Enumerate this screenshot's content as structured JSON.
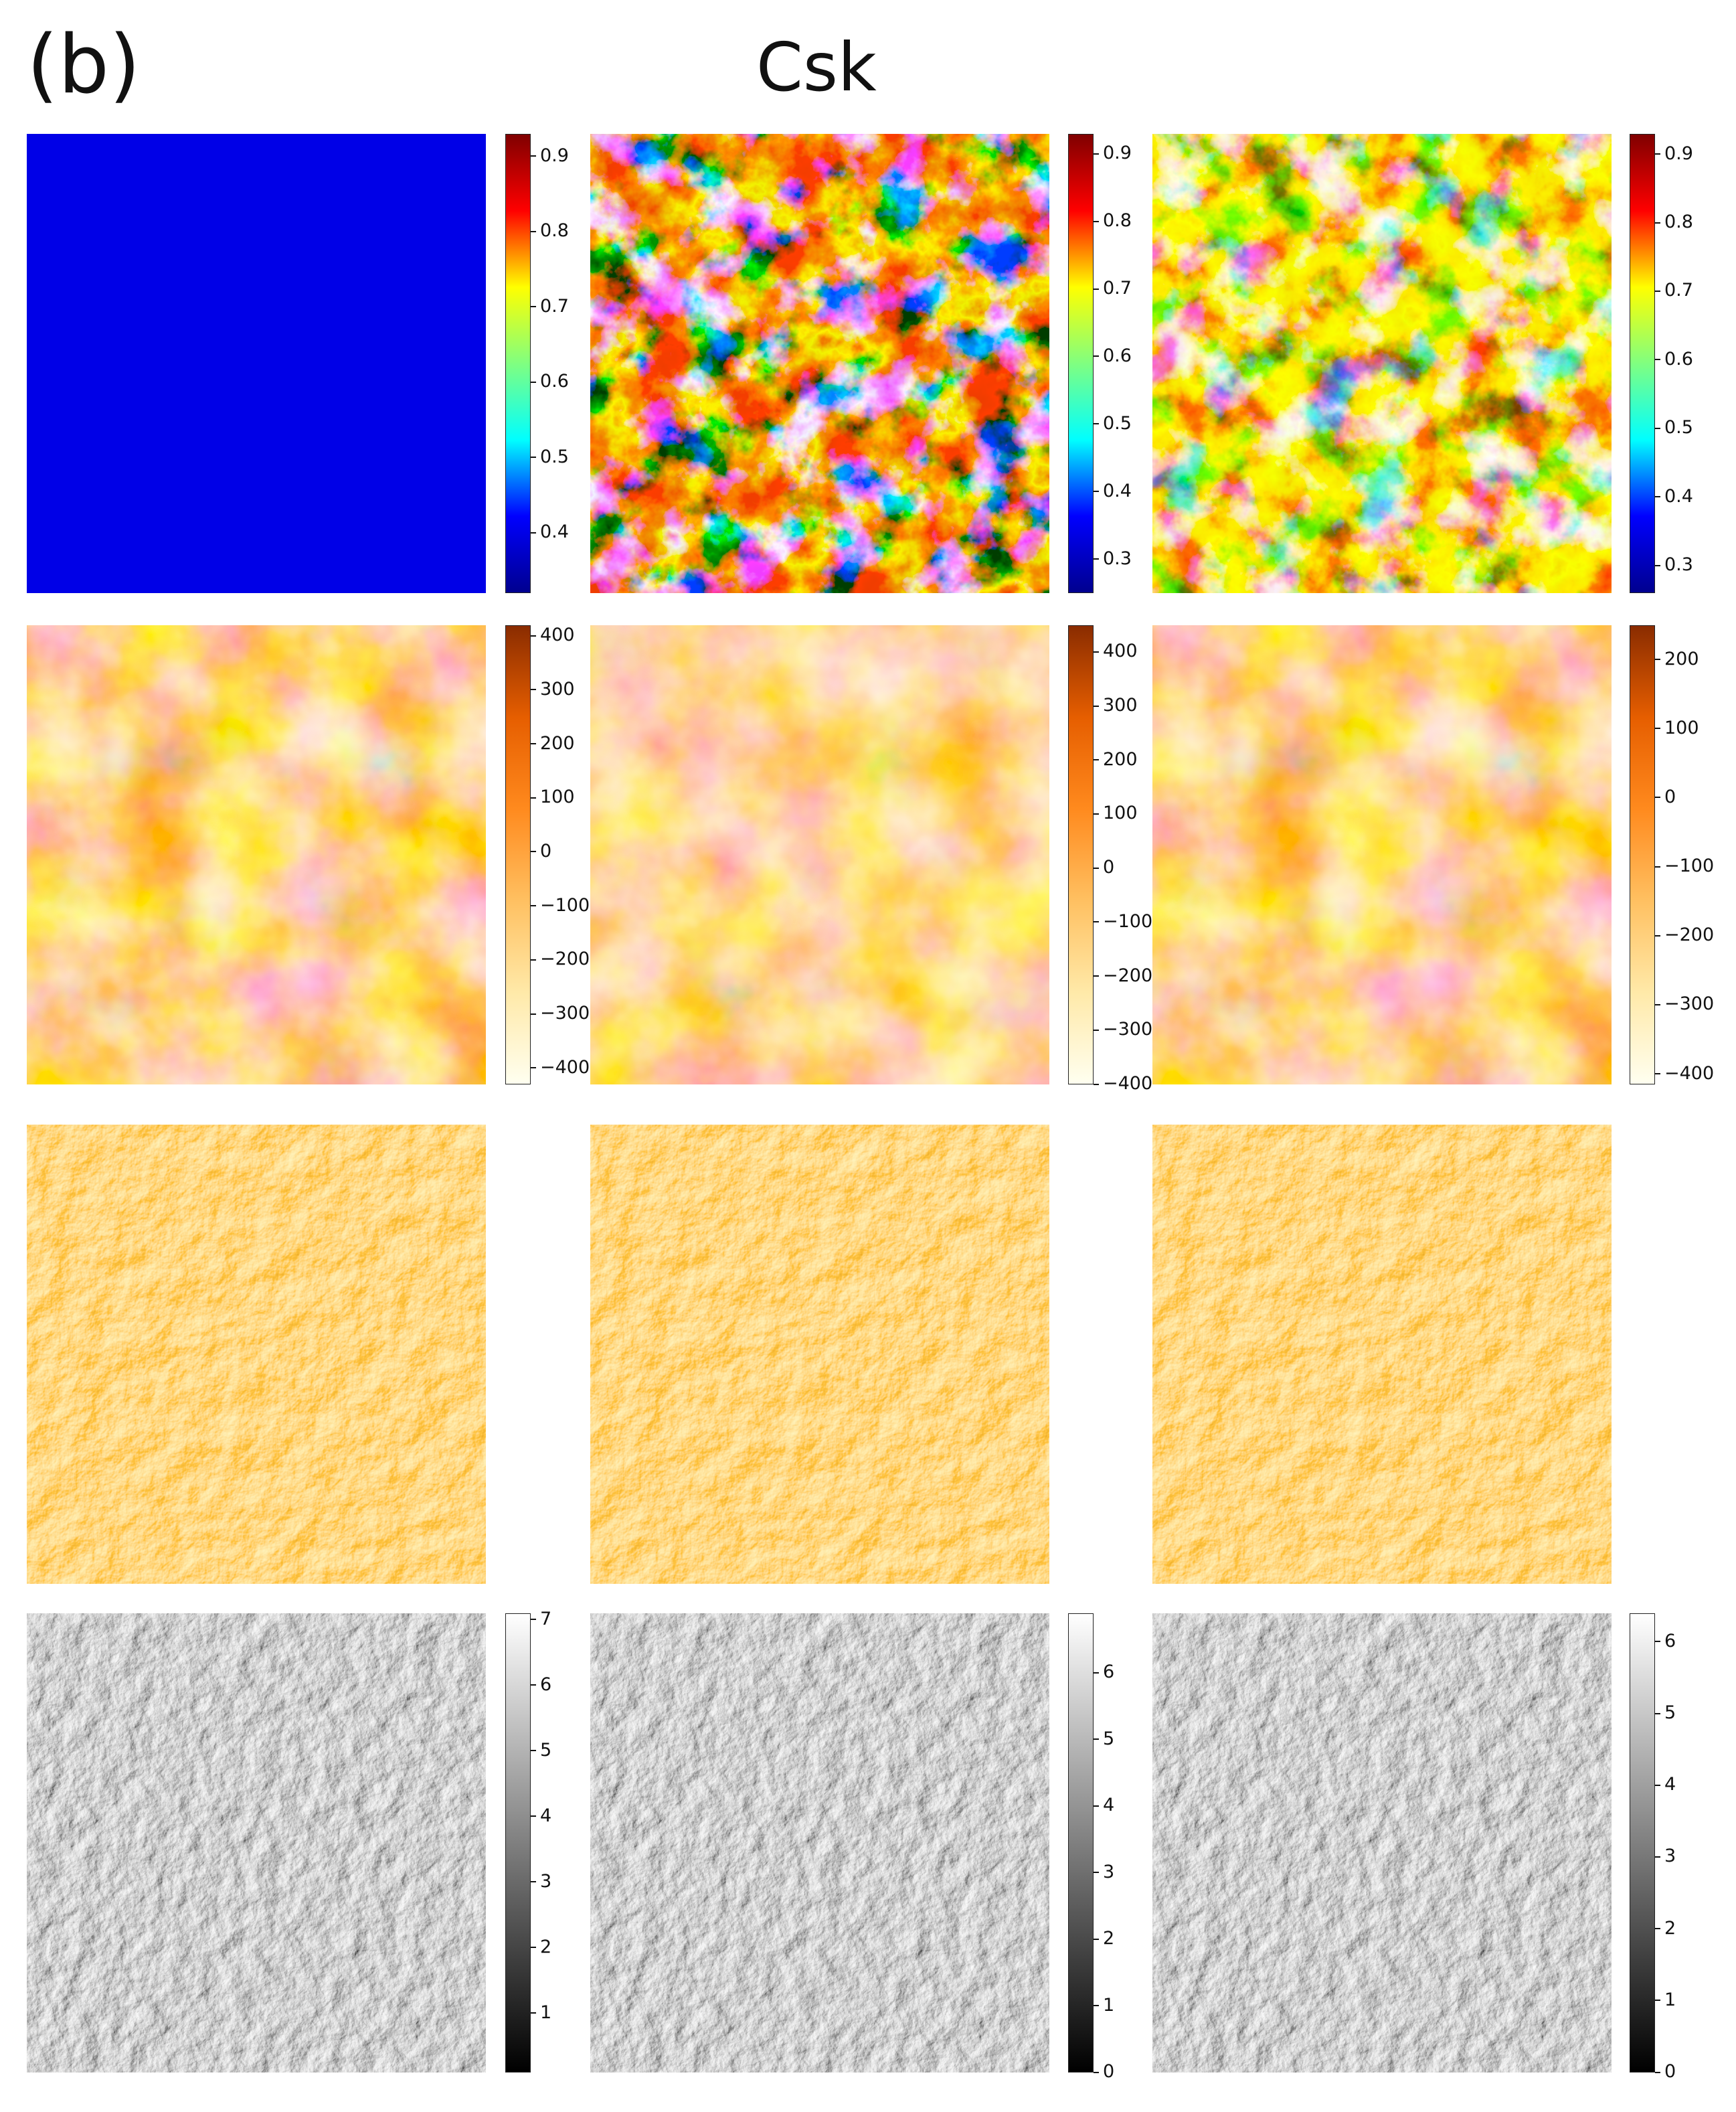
{
  "panel_label": "(b)",
  "title": "Csk",
  "rows": [
    {
      "colormap": "jet",
      "colormap_colors": [
        "#00008f",
        "#0000ff",
        "#00ffff",
        "#80ff80",
        "#ffff00",
        "#ff0000",
        "#800000"
      ],
      "colorbars": [
        {
          "ticks": [
            "0.9",
            "0.8",
            "0.7",
            "0.6",
            "0.5",
            "0.4"
          ],
          "range": [
            0.32,
            0.93
          ]
        },
        {
          "ticks": [
            "0.9",
            "0.8",
            "0.7",
            "0.6",
            "0.5",
            "0.4",
            "0.3"
          ],
          "range": [
            0.25,
            0.93
          ]
        },
        {
          "ticks": [
            "0.9",
            "0.8",
            "0.7",
            "0.6",
            "0.5",
            "0.4",
            "0.3"
          ],
          "range": [
            0.26,
            0.93
          ]
        }
      ]
    },
    {
      "colormap": "YlOrBr-like",
      "colormap_colors": [
        "#fffff0",
        "#ffe9a8",
        "#ffc061",
        "#ff8a1e",
        "#e65e00",
        "#8a2c00"
      ],
      "colorbars": [
        {
          "ticks": [
            "400",
            "300",
            "200",
            "100",
            "0",
            "−100",
            "−200",
            "−300",
            "−400"
          ],
          "range": [
            -430,
            420
          ]
        },
        {
          "ticks": [
            "400",
            "300",
            "200",
            "100",
            "0",
            "−100",
            "−200",
            "−300",
            "−400"
          ],
          "range": [
            -400,
            450
          ]
        },
        {
          "ticks": [
            "200",
            "100",
            "0",
            "−100",
            "−200",
            "−300",
            "−400"
          ],
          "range": [
            -415,
            250
          ]
        }
      ]
    },
    {
      "colormap": "orange-relief",
      "colorbars": []
    },
    {
      "colormap": "gray",
      "colormap_colors": [
        "#000000",
        "#ffffff"
      ],
      "colorbars": [
        {
          "ticks": [
            "7",
            "6",
            "5",
            "4",
            "3",
            "2",
            "1"
          ],
          "range": [
            0.1,
            7.1
          ]
        },
        {
          "ticks": [
            "6",
            "5",
            "4",
            "3",
            "2",
            "1",
            "0"
          ],
          "range": [
            0,
            6.9
          ]
        },
        {
          "ticks": [
            "6",
            "5",
            "4",
            "3",
            "2",
            "1",
            "0"
          ],
          "range": [
            0,
            6.4
          ]
        }
      ]
    }
  ]
}
